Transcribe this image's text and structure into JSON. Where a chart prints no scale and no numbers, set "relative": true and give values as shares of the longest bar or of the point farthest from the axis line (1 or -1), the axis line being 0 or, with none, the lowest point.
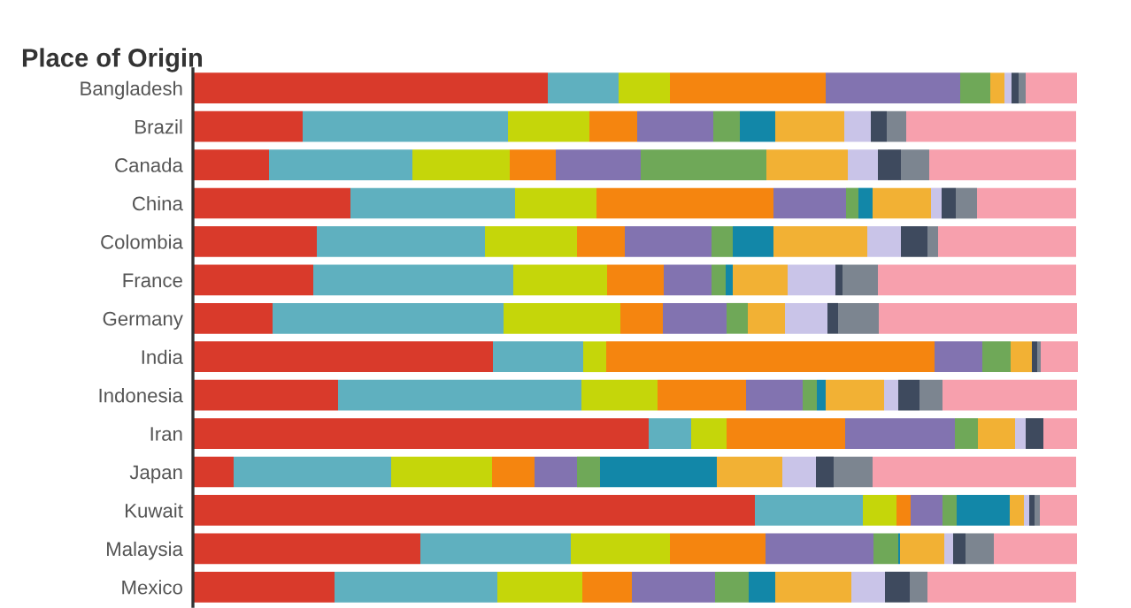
{
  "chart_data": {
    "type": "bar",
    "orientation": "horizontal",
    "stacked": true,
    "relative": true,
    "title": "Place of Origin",
    "categories": [
      "Bangladesh",
      "Brazil",
      "Canada",
      "China",
      "Colombia",
      "France",
      "Germany",
      "India",
      "Indonesia",
      "Iran",
      "Japan",
      "Kuwait",
      "Malaysia",
      "Mexico"
    ],
    "series": [
      {
        "color": "#d93a2b",
        "values": [
          0.401,
          0.124,
          0.086,
          0.178,
          0.14,
          0.136,
          0.09,
          0.339,
          0.164,
          0.515,
          0.046,
          0.635,
          0.257,
          0.16
        ]
      },
      {
        "color": "#5fb0bf",
        "values": [
          0.08,
          0.232,
          0.162,
          0.186,
          0.19,
          0.226,
          0.261,
          0.102,
          0.275,
          0.048,
          0.178,
          0.122,
          0.17,
          0.184
        ]
      },
      {
        "color": "#c5d60a",
        "values": [
          0.058,
          0.092,
          0.11,
          0.092,
          0.104,
          0.106,
          0.132,
          0.026,
          0.086,
          0.04,
          0.114,
          0.038,
          0.112,
          0.096
        ]
      },
      {
        "color": "#f5850f",
        "values": [
          0.176,
          0.054,
          0.052,
          0.2,
          0.054,
          0.064,
          0.048,
          0.371,
          0.1,
          0.134,
          0.048,
          0.016,
          0.108,
          0.056
        ]
      },
      {
        "color": "#8273b0",
        "values": [
          0.152,
          0.086,
          0.096,
          0.082,
          0.098,
          0.054,
          0.072,
          0.054,
          0.064,
          0.124,
          0.048,
          0.036,
          0.122,
          0.094
        ]
      },
      {
        "color": "#6fa858",
        "values": [
          0.034,
          0.03,
          0.142,
          0.014,
          0.024,
          0.016,
          0.024,
          0.032,
          0.016,
          0.026,
          0.026,
          0.016,
          0.028,
          0.038
        ]
      },
      {
        "color": "#1287a8",
        "values": [
          0,
          0.04,
          0,
          0.016,
          0.046,
          0.008,
          0,
          0,
          0.01,
          0,
          0.132,
          0.06,
          0.002,
          0.03
        ]
      },
      {
        "color": "#f2b134",
        "values": [
          0.016,
          0.078,
          0.092,
          0.066,
          0.106,
          0.062,
          0.042,
          0.024,
          0.066,
          0.042,
          0.074,
          0.016,
          0.05,
          0.086
        ]
      },
      {
        "color": "#c9c4e8",
        "values": [
          0.008,
          0.03,
          0.034,
          0.012,
          0.038,
          0.054,
          0.048,
          0,
          0.016,
          0.012,
          0.038,
          0.006,
          0.01,
          0.038
        ]
      },
      {
        "color": "#3e4a5e",
        "values": [
          0.008,
          0.018,
          0.026,
          0.016,
          0.03,
          0.008,
          0.012,
          0.006,
          0.024,
          0.02,
          0.02,
          0.006,
          0.014,
          0.028
        ]
      },
      {
        "color": "#7c8590",
        "values": [
          0.008,
          0.022,
          0.032,
          0.024,
          0.012,
          0.04,
          0.046,
          0.004,
          0.026,
          0,
          0.044,
          0.006,
          0.032,
          0.02
        ]
      },
      {
        "color": "#f7a0ad",
        "values": [
          0.058,
          0.192,
          0.166,
          0.112,
          0.156,
          0.224,
          0.224,
          0.042,
          0.152,
          0.038,
          0.23,
          0.042,
          0.094,
          0.168
        ]
      }
    ]
  }
}
